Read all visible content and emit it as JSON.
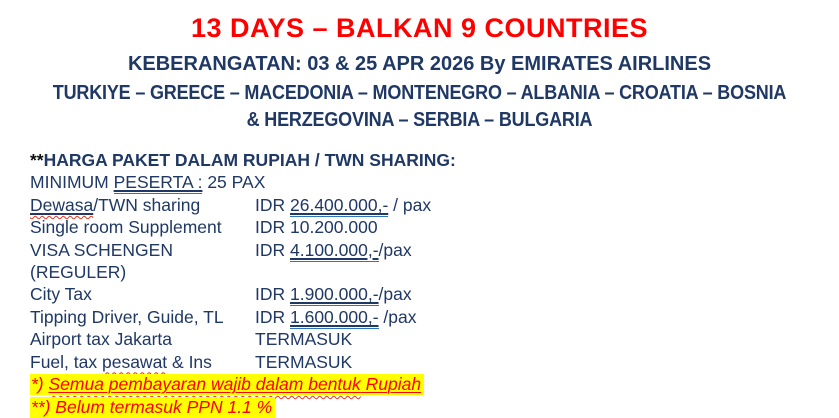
{
  "colors": {
    "title_red": "#ff0000",
    "navy": "#1f3864",
    "underline_blue": "#2e75b6",
    "wavy_red": "#e8331a",
    "footnote_red": "#ff0000",
    "highlight": "#ffff00"
  },
  "header": {
    "title": "13 DAYS – BALKAN 9 COUNTRIES",
    "subtitle": "KEBERANGATAN: 03 & 25 APR 2026 By EMIRATES AIRLINES",
    "countries_line1": "TURKIYE – GREECE – MACEDONIA – MONTENEGRO – ALBANIA – CROATIA – BOSNIA",
    "countries_line2": "& HERZEGOVINA – SERBIA – BULGARIA"
  },
  "pricing": {
    "heading_stars": "**",
    "heading": "HARGA PAKET DALAM RUPIAH / TWN SHARING:",
    "min_pre": "MINIMUM ",
    "min_u": "PESERTA :",
    "min_post": " 25 PAX",
    "rows": [
      {
        "label_u": "Dewasa",
        "label_post": "/TWN sharing",
        "value_pre": "IDR ",
        "value_u": "26.400.000,-",
        "value_post": " / pax"
      },
      {
        "label_pre": "Single room Supplement",
        "value_pre": "IDR 10.200.000"
      },
      {
        "label_pre": "VISA SCHENGEN (REGULER)",
        "value_pre": "IDR ",
        "value_u": "4.100.000,-",
        "value_post": "/pax"
      },
      {
        "label_pre": "City Tax",
        "value_pre": "IDR ",
        "value_u": "1.900.000,-",
        "value_post": "/pax"
      },
      {
        "label_pre": "Tipping Driver, Guide, TL",
        "value_pre": "IDR ",
        "value_u": "1.600.000,-",
        "value_post": " /pax"
      },
      {
        "label_pre": "Airport tax Jakarta",
        "value_pre": "TERMASUK"
      },
      {
        "label_pre": "Fuel, tax ",
        "label_w": "pesawat",
        "label_post": " & Ins",
        "value_pre": "TERMASUK"
      }
    ]
  },
  "footnotes": [
    {
      "prefix": "*) ",
      "wavy": "Semua pembayaran wajib dalam bentuk",
      "tail": " Rupiah"
    },
    {
      "prefix": "**) Belum ",
      "wavy": "termasuk",
      "tail": " PPN 1.1 %"
    }
  ]
}
